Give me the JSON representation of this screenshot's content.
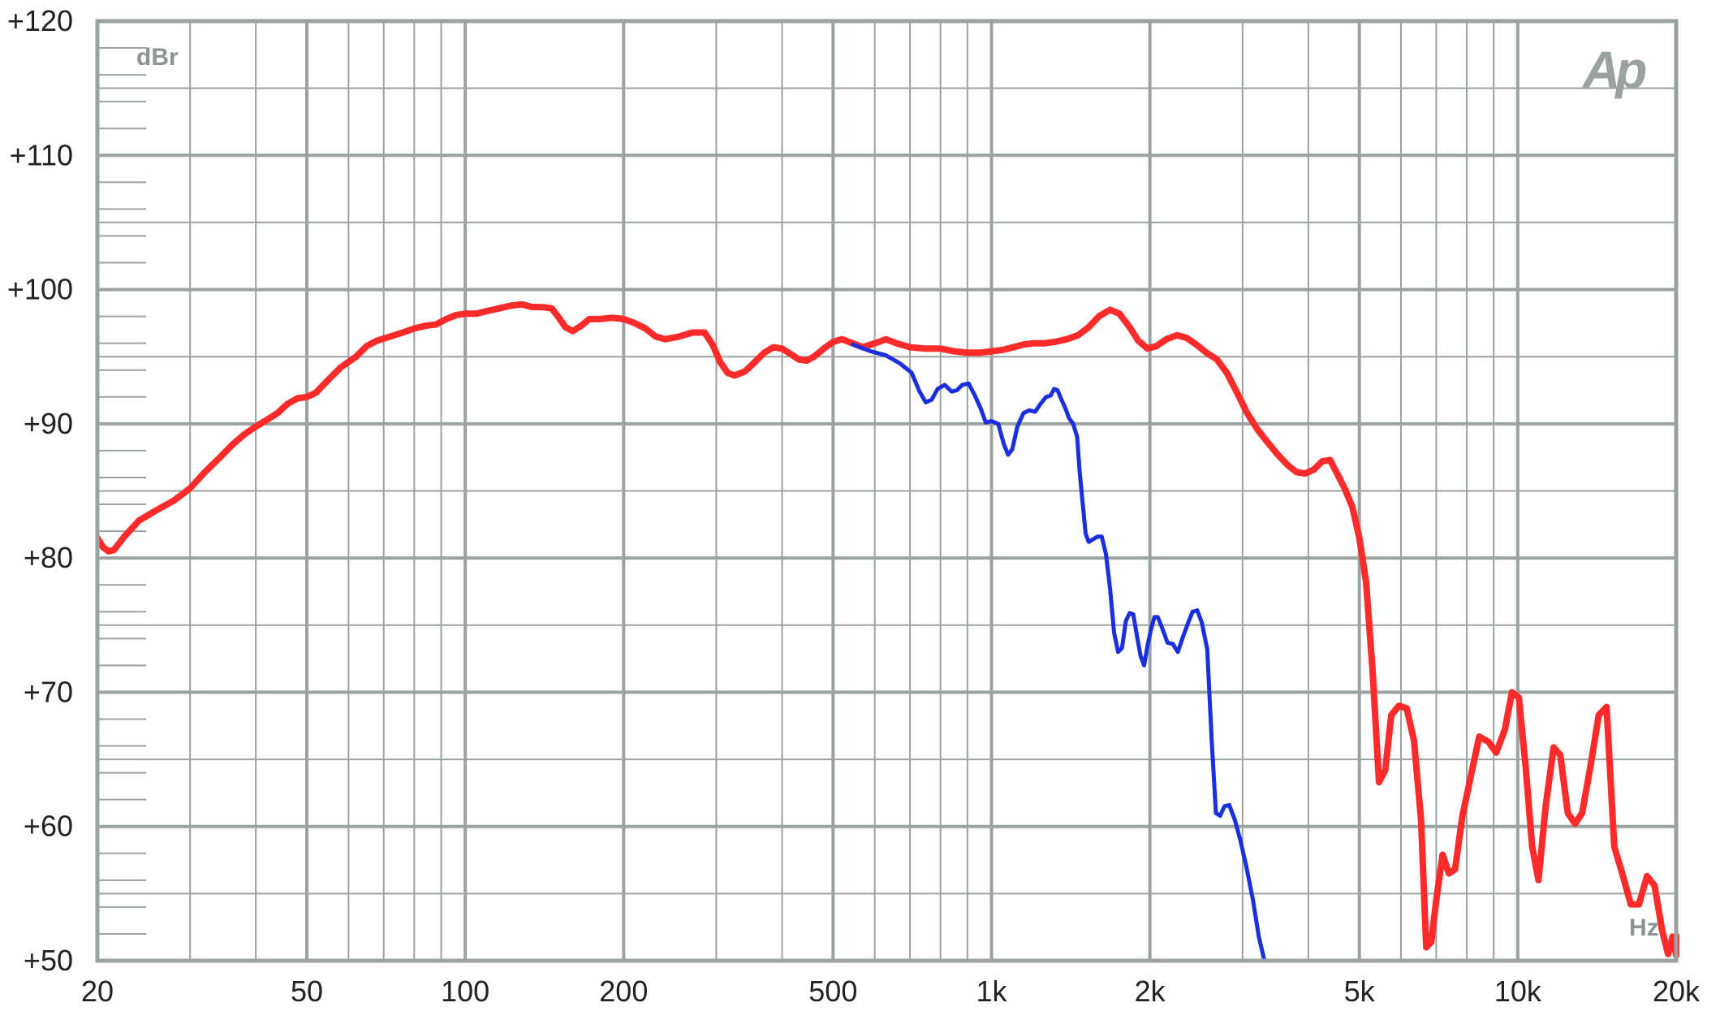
{
  "chart_data": {
    "type": "line",
    "title": "",
    "xlabel": "",
    "ylabel": "",
    "y_unit_label": "dBr",
    "x_unit_label": "Hz",
    "logo_text": "Ap",
    "x_scale": "log",
    "xlim": [
      20,
      20000
    ],
    "ylim": [
      50,
      120
    ],
    "grid": true,
    "legend": "none",
    "x_tick_values": [
      20,
      50,
      100,
      200,
      500,
      1000,
      2000,
      5000,
      10000,
      20000
    ],
    "x_tick_labels": [
      "20",
      "50",
      "100",
      "200",
      "500",
      "1k",
      "2k",
      "5k",
      "10k",
      "20k"
    ],
    "y_tick_values": [
      50,
      60,
      70,
      80,
      90,
      100,
      110,
      120
    ],
    "y_tick_labels": [
      "+50",
      "+60",
      "+70",
      "+80",
      "+90",
      "+100",
      "+110",
      "+120"
    ],
    "colors": {
      "grid": "#9aa39f",
      "frame": "#9aa39f",
      "text": "#222222",
      "red_series": "#ff2a2a",
      "blue_series": "#1a2fe0"
    },
    "series": [
      {
        "color": "#ff2a2a",
        "points": [
          [
            20,
            81.5
          ],
          [
            20.5,
            80.8
          ],
          [
            21,
            80.5
          ],
          [
            21.5,
            80.6
          ],
          [
            22.5,
            81.6
          ],
          [
            24,
            82.8
          ],
          [
            26,
            83.6
          ],
          [
            28,
            84.3
          ],
          [
            30,
            85.2
          ],
          [
            32,
            86.4
          ],
          [
            34,
            87.4
          ],
          [
            36,
            88.4
          ],
          [
            38,
            89.2
          ],
          [
            40,
            89.8
          ],
          [
            42,
            90.3
          ],
          [
            44,
            90.8
          ],
          [
            46,
            91.5
          ],
          [
            48,
            91.9
          ],
          [
            50,
            92.0
          ],
          [
            52,
            92.3
          ],
          [
            55,
            93.3
          ],
          [
            58,
            94.2
          ],
          [
            62,
            95.0
          ],
          [
            65,
            95.8
          ],
          [
            68,
            96.2
          ],
          [
            72,
            96.5
          ],
          [
            76,
            96.8
          ],
          [
            80,
            97.1
          ],
          [
            84,
            97.3
          ],
          [
            88,
            97.4
          ],
          [
            92,
            97.8
          ],
          [
            96,
            98.1
          ],
          [
            100,
            98.2
          ],
          [
            105,
            98.2
          ],
          [
            110,
            98.4
          ],
          [
            116,
            98.6
          ],
          [
            122,
            98.8
          ],
          [
            128,
            98.9
          ],
          [
            134,
            98.7
          ],
          [
            140,
            98.7
          ],
          [
            146,
            98.6
          ],
          [
            150,
            98.0
          ],
          [
            155,
            97.2
          ],
          [
            160,
            96.9
          ],
          [
            166,
            97.3
          ],
          [
            172,
            97.8
          ],
          [
            180,
            97.8
          ],
          [
            190,
            97.9
          ],
          [
            200,
            97.8
          ],
          [
            210,
            97.5
          ],
          [
            220,
            97.1
          ],
          [
            230,
            96.5
          ],
          [
            240,
            96.3
          ],
          [
            255,
            96.5
          ],
          [
            270,
            96.8
          ],
          [
            285,
            96.8
          ],
          [
            295,
            95.9
          ],
          [
            305,
            94.6
          ],
          [
            315,
            93.8
          ],
          [
            325,
            93.6
          ],
          [
            340,
            93.9
          ],
          [
            355,
            94.6
          ],
          [
            370,
            95.3
          ],
          [
            385,
            95.7
          ],
          [
            400,
            95.6
          ],
          [
            415,
            95.2
          ],
          [
            430,
            94.8
          ],
          [
            445,
            94.7
          ],
          [
            460,
            95.0
          ],
          [
            480,
            95.6
          ],
          [
            500,
            96.1
          ],
          [
            520,
            96.3
          ],
          [
            545,
            96.0
          ],
          [
            570,
            95.7
          ],
          [
            600,
            96.0
          ],
          [
            630,
            96.3
          ],
          [
            660,
            96.0
          ],
          [
            700,
            95.7
          ],
          [
            750,
            95.6
          ],
          [
            800,
            95.6
          ],
          [
            850,
            95.4
          ],
          [
            900,
            95.3
          ],
          [
            950,
            95.3
          ],
          [
            1000,
            95.4
          ],
          [
            1050,
            95.5
          ],
          [
            1100,
            95.7
          ],
          [
            1150,
            95.9
          ],
          [
            1200,
            96.0
          ],
          [
            1260,
            96.0
          ],
          [
            1320,
            96.1
          ],
          [
            1390,
            96.3
          ],
          [
            1460,
            96.6
          ],
          [
            1530,
            97.2
          ],
          [
            1600,
            98.0
          ],
          [
            1680,
            98.5
          ],
          [
            1750,
            98.2
          ],
          [
            1830,
            97.2
          ],
          [
            1900,
            96.2
          ],
          [
            1980,
            95.6
          ],
          [
            2060,
            95.8
          ],
          [
            2150,
            96.3
          ],
          [
            2250,
            96.6
          ],
          [
            2350,
            96.4
          ],
          [
            2450,
            95.9
          ],
          [
            2560,
            95.3
          ],
          [
            2680,
            94.8
          ],
          [
            2800,
            93.8
          ],
          [
            2930,
            92.3
          ],
          [
            3060,
            90.8
          ],
          [
            3200,
            89.6
          ],
          [
            3350,
            88.6
          ],
          [
            3500,
            87.7
          ],
          [
            3660,
            86.9
          ],
          [
            3800,
            86.4
          ],
          [
            3950,
            86.3
          ],
          [
            4100,
            86.6
          ],
          [
            4250,
            87.2
          ],
          [
            4400,
            87.3
          ],
          [
            4550,
            86.2
          ],
          [
            4700,
            85.1
          ],
          [
            4850,
            83.8
          ],
          [
            5000,
            81.5
          ],
          [
            5150,
            78.2
          ],
          [
            5300,
            71.5
          ],
          [
            5450,
            63.3
          ],
          [
            5600,
            64.2
          ],
          [
            5750,
            68.3
          ],
          [
            5950,
            69.0
          ],
          [
            6150,
            68.8
          ],
          [
            6350,
            66.4
          ],
          [
            6550,
            60.5
          ],
          [
            6700,
            51.0
          ],
          [
            6850,
            51.4
          ],
          [
            7000,
            54.5
          ],
          [
            7200,
            57.9
          ],
          [
            7400,
            56.5
          ],
          [
            7600,
            56.8
          ],
          [
            7850,
            60.8
          ],
          [
            8150,
            63.8
          ],
          [
            8450,
            66.7
          ],
          [
            8800,
            66.3
          ],
          [
            9100,
            65.5
          ],
          [
            9450,
            67.2
          ],
          [
            9750,
            70.0
          ],
          [
            10050,
            69.6
          ],
          [
            10350,
            64.5
          ],
          [
            10650,
            58.5
          ],
          [
            10950,
            56.0
          ],
          [
            11300,
            61.5
          ],
          [
            11700,
            65.9
          ],
          [
            12050,
            65.3
          ],
          [
            12450,
            61.0
          ],
          [
            12850,
            60.2
          ],
          [
            13250,
            61.0
          ],
          [
            13750,
            64.5
          ],
          [
            14250,
            68.3
          ],
          [
            14750,
            68.9
          ],
          [
            15250,
            58.5
          ],
          [
            15800,
            56.5
          ],
          [
            16400,
            54.2
          ],
          [
            17000,
            54.2
          ],
          [
            17600,
            56.3
          ],
          [
            18200,
            55.6
          ],
          [
            18800,
            52.3
          ],
          [
            19300,
            50.5
          ],
          [
            19700,
            51.8
          ],
          [
            20000,
            50.4
          ],
          [
            20400,
            51.8
          ],
          [
            20800,
            50.0
          ],
          [
            21300,
            50.5
          ],
          [
            21900,
            51.7
          ],
          [
            22600,
            52.8
          ]
        ]
      },
      {
        "color": "#1a2fe0",
        "points": [
          [
            545,
            95.9
          ],
          [
            590,
            95.4
          ],
          [
            630,
            95.1
          ],
          [
            670,
            94.5
          ],
          [
            705,
            93.8
          ],
          [
            730,
            92.4
          ],
          [
            750,
            91.6
          ],
          [
            770,
            91.8
          ],
          [
            790,
            92.6
          ],
          [
            815,
            92.9
          ],
          [
            840,
            92.4
          ],
          [
            860,
            92.5
          ],
          [
            880,
            92.9
          ],
          [
            905,
            93.0
          ],
          [
            930,
            92.1
          ],
          [
            955,
            91.1
          ],
          [
            975,
            90.1
          ],
          [
            1000,
            90.2
          ],
          [
            1030,
            90.0
          ],
          [
            1055,
            88.5
          ],
          [
            1075,
            87.7
          ],
          [
            1095,
            88.1
          ],
          [
            1120,
            89.8
          ],
          [
            1150,
            90.8
          ],
          [
            1180,
            91.0
          ],
          [
            1210,
            90.9
          ],
          [
            1240,
            91.5
          ],
          [
            1270,
            92.0
          ],
          [
            1295,
            92.1
          ],
          [
            1315,
            92.6
          ],
          [
            1335,
            92.5
          ],
          [
            1355,
            91.9
          ],
          [
            1380,
            91.2
          ],
          [
            1405,
            90.4
          ],
          [
            1430,
            90.0
          ],
          [
            1455,
            89.0
          ],
          [
            1470,
            86.5
          ],
          [
            1490,
            84.1
          ],
          [
            1510,
            81.8
          ],
          [
            1530,
            81.2
          ],
          [
            1560,
            81.4
          ],
          [
            1590,
            81.6
          ],
          [
            1620,
            81.6
          ],
          [
            1650,
            80.3
          ],
          [
            1680,
            77.7
          ],
          [
            1710,
            74.4
          ],
          [
            1740,
            73.0
          ],
          [
            1770,
            73.3
          ],
          [
            1800,
            75.3
          ],
          [
            1830,
            75.9
          ],
          [
            1860,
            75.8
          ],
          [
            1890,
            74.2
          ],
          [
            1920,
            72.7
          ],
          [
            1950,
            72.0
          ],
          [
            1980,
            73.5
          ],
          [
            2010,
            74.7
          ],
          [
            2040,
            75.6
          ],
          [
            2070,
            75.6
          ],
          [
            2110,
            74.8
          ],
          [
            2160,
            73.7
          ],
          [
            2210,
            73.6
          ],
          [
            2260,
            73.0
          ],
          [
            2310,
            74.1
          ],
          [
            2360,
            75.1
          ],
          [
            2410,
            76.0
          ],
          [
            2460,
            76.1
          ],
          [
            2510,
            75.2
          ],
          [
            2570,
            73.2
          ],
          [
            2620,
            66.5
          ],
          [
            2670,
            61.0
          ],
          [
            2720,
            60.8
          ],
          [
            2770,
            61.5
          ],
          [
            2830,
            61.6
          ],
          [
            2900,
            60.5
          ],
          [
            2970,
            59.0
          ],
          [
            3050,
            57.0
          ],
          [
            3140,
            54.5
          ],
          [
            3220,
            51.8
          ],
          [
            3300,
            50.0
          ]
        ]
      }
    ]
  }
}
